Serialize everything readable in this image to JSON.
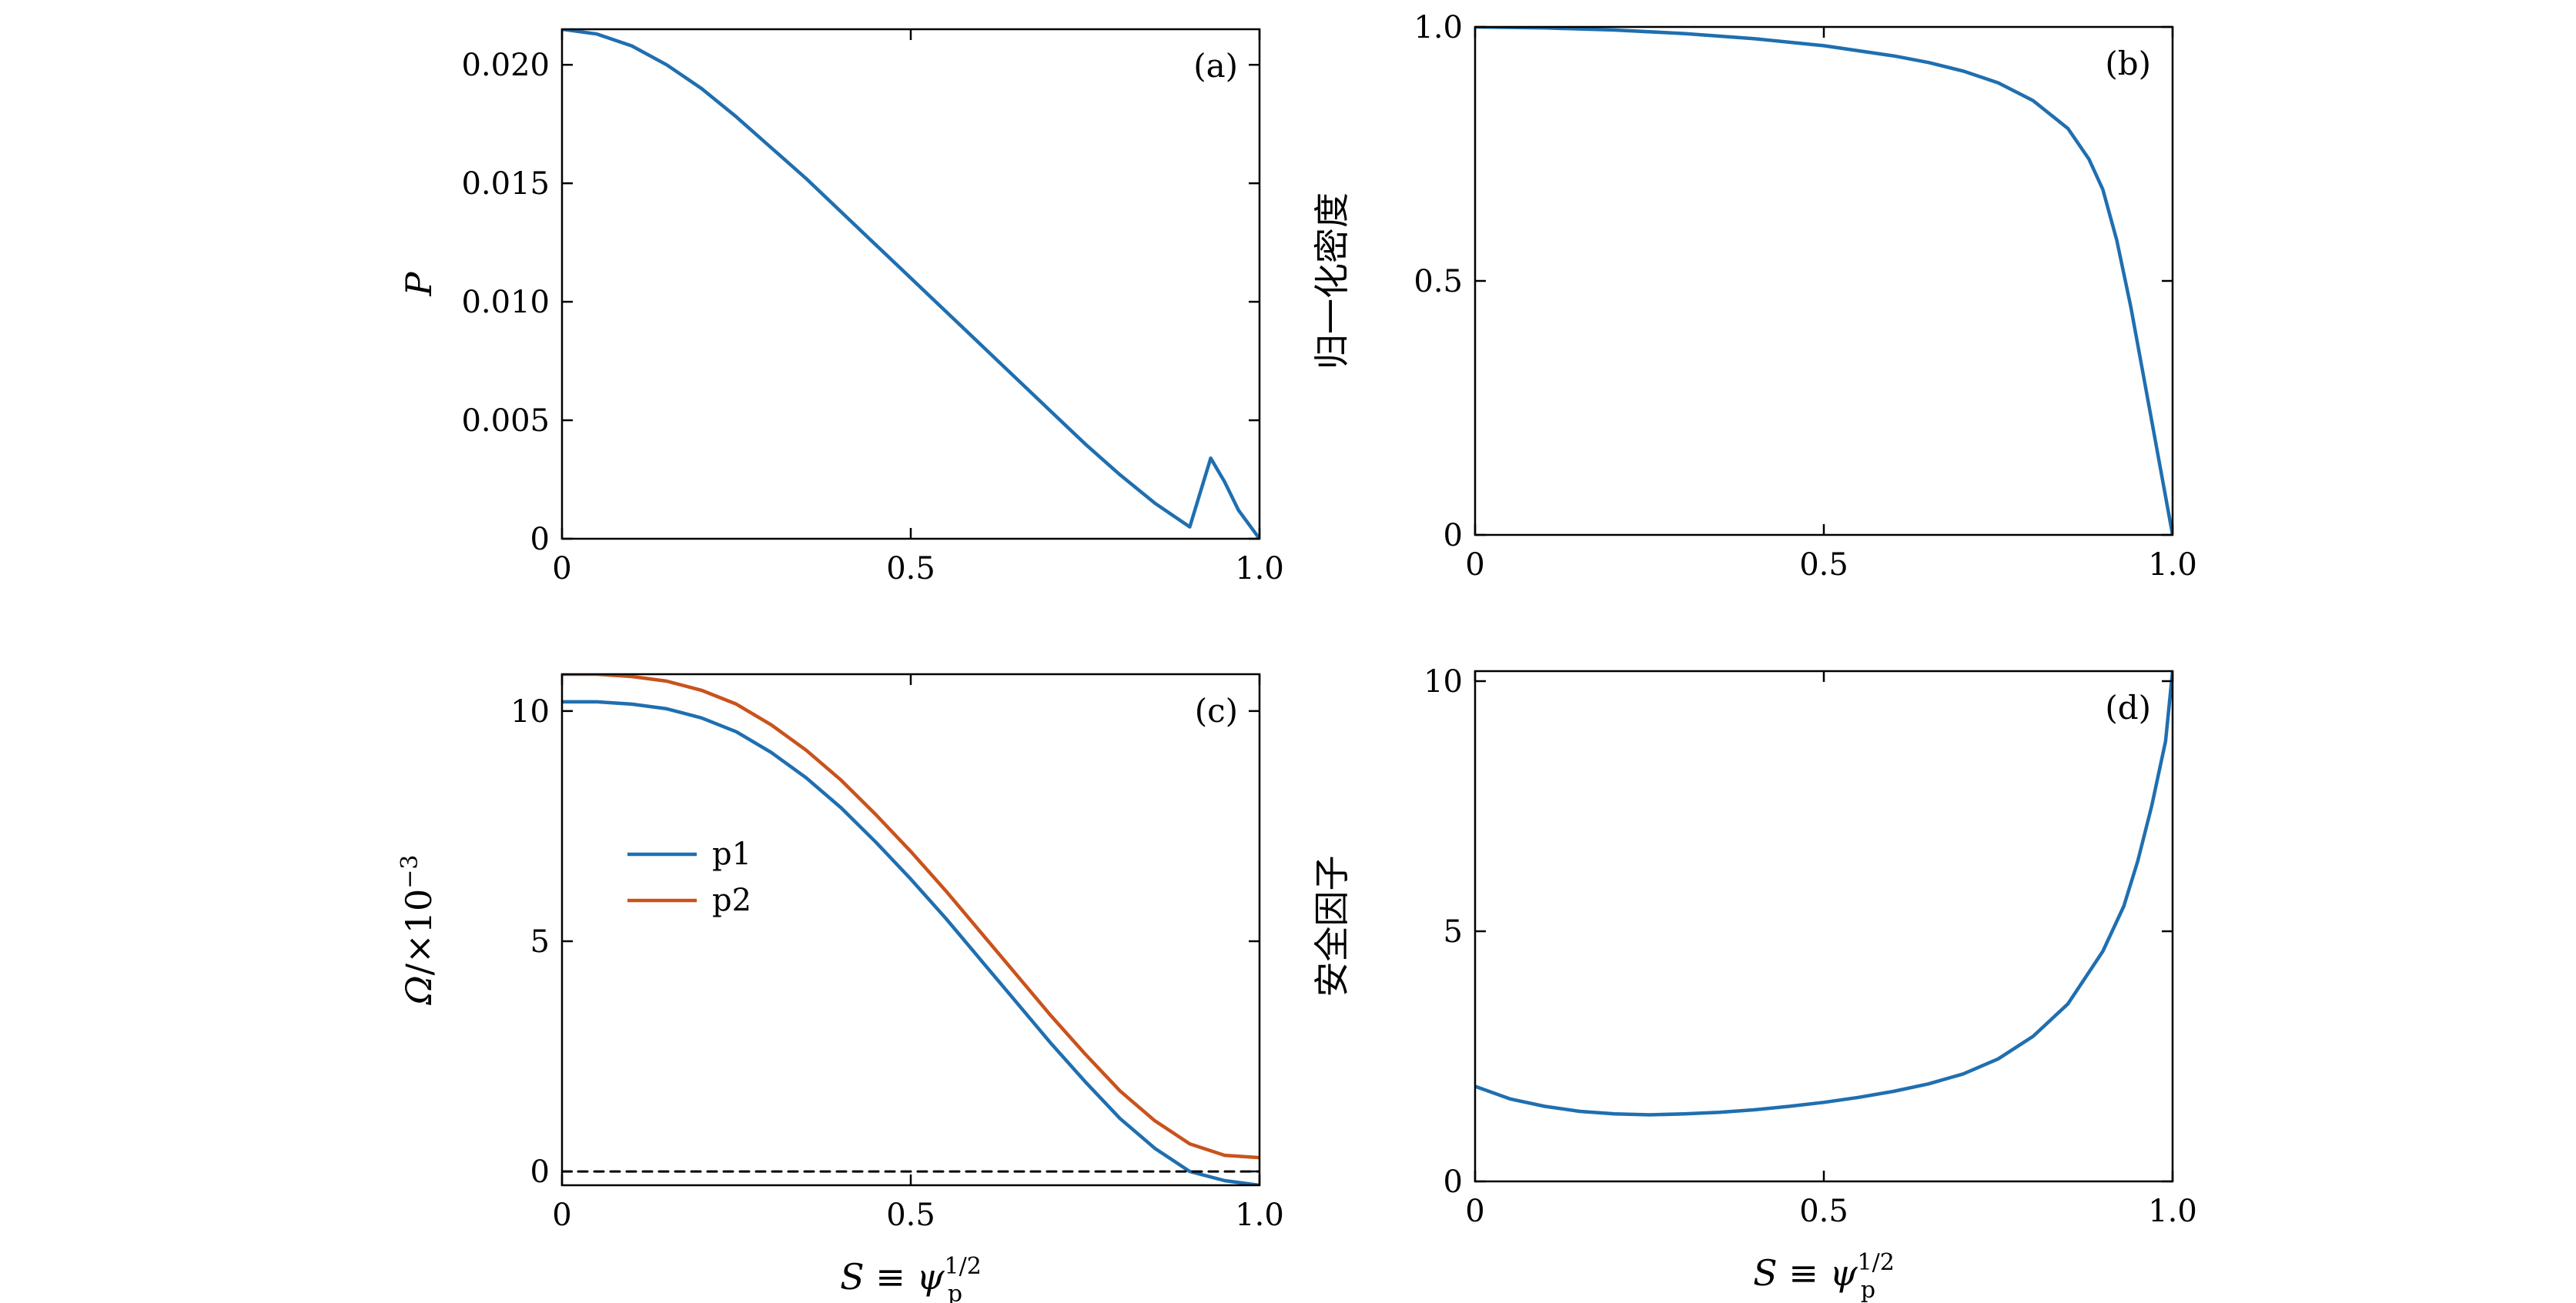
{
  "chart_data": [
    {
      "id": "a",
      "type": "line",
      "panel_label": "(a)",
      "ylabel": "P",
      "xlabel": "",
      "xlim": [
        0,
        1
      ],
      "ylim": [
        0,
        0.0215
      ],
      "xticks": [
        0,
        0.5,
        1.0
      ],
      "xtick_labels": [
        "0",
        "0.5",
        "1.0"
      ],
      "yticks": [
        0,
        0.005,
        0.01,
        0.015,
        0.02
      ],
      "ytick_labels": [
        "0",
        "0.005",
        "0.010",
        "0.015",
        "0.020"
      ],
      "series": [
        {
          "color": "#1f6fb0",
          "dashed": false,
          "x": [
            0,
            0.05,
            0.1,
            0.15,
            0.2,
            0.25,
            0.3,
            0.35,
            0.4,
            0.45,
            0.5,
            0.55,
            0.6,
            0.65,
            0.7,
            0.75,
            0.8,
            0.85,
            0.9,
            0.93,
            0.95,
            0.97,
            1.0
          ],
          "y": [
            0.0215,
            0.0213,
            0.0208,
            0.02,
            0.019,
            0.0178,
            0.0165,
            0.0152,
            0.0138,
            0.0124,
            0.011,
            0.0096,
            0.0082,
            0.0068,
            0.0054,
            0.004,
            0.0027,
            0.0015,
            0.0005,
            0.0034,
            0.0024,
            0.0012,
            0.0
          ]
        }
      ]
    },
    {
      "id": "b",
      "type": "line",
      "panel_label": "(b)",
      "ylabel": "归一化密度",
      "xlabel": "",
      "xlim": [
        0,
        1
      ],
      "ylim": [
        0,
        1
      ],
      "xticks": [
        0,
        0.5,
        1.0
      ],
      "xtick_labels": [
        "0",
        "0.5",
        "1.0"
      ],
      "yticks": [
        0,
        0.5,
        1.0
      ],
      "ytick_labels": [
        "0",
        "0.5",
        "1.0"
      ],
      "series": [
        {
          "color": "#1f6fb0",
          "dashed": false,
          "x": [
            0,
            0.1,
            0.2,
            0.3,
            0.4,
            0.5,
            0.6,
            0.65,
            0.7,
            0.75,
            0.8,
            0.85,
            0.88,
            0.9,
            0.92,
            0.94,
            0.96,
            0.98,
            1.0
          ],
          "y": [
            1.0,
            0.998,
            0.994,
            0.987,
            0.977,
            0.963,
            0.943,
            0.93,
            0.913,
            0.89,
            0.855,
            0.8,
            0.74,
            0.68,
            0.58,
            0.45,
            0.3,
            0.15,
            0.0
          ]
        }
      ]
    },
    {
      "id": "c",
      "type": "line",
      "panel_label": "(c)",
      "ylabel": "Ω/×10⁻³",
      "xlabel": "S ≡ ψp1/2",
      "xlim": [
        0,
        1
      ],
      "ylim": [
        -0.3,
        10.8
      ],
      "xticks": [
        0,
        0.5,
        1.0
      ],
      "xtick_labels": [
        "0",
        "0.5",
        "1.0"
      ],
      "yticks": [
        0,
        5,
        10
      ],
      "ytick_labels": [
        "0",
        "5",
        "10"
      ],
      "legend_position": "center-left",
      "series": [
        {
          "name": "p1",
          "color": "#1f6fb0",
          "dashed": false,
          "x": [
            0,
            0.05,
            0.1,
            0.15,
            0.2,
            0.25,
            0.3,
            0.35,
            0.4,
            0.45,
            0.5,
            0.55,
            0.6,
            0.65,
            0.7,
            0.75,
            0.8,
            0.85,
            0.9,
            0.95,
            1.0
          ],
          "y": [
            10.2,
            10.2,
            10.15,
            10.05,
            9.85,
            9.55,
            9.1,
            8.55,
            7.9,
            7.15,
            6.35,
            5.5,
            4.6,
            3.7,
            2.8,
            1.95,
            1.15,
            0.5,
            0.0,
            -0.2,
            -0.3
          ]
        },
        {
          "name": "p2",
          "color": "#c9531c",
          "dashed": false,
          "x": [
            0,
            0.05,
            0.1,
            0.15,
            0.2,
            0.25,
            0.3,
            0.35,
            0.4,
            0.45,
            0.5,
            0.55,
            0.6,
            0.65,
            0.7,
            0.75,
            0.8,
            0.85,
            0.9,
            0.95,
            1.0
          ],
          "y": [
            10.8,
            10.8,
            10.75,
            10.65,
            10.45,
            10.15,
            9.7,
            9.15,
            8.5,
            7.75,
            6.95,
            6.1,
            5.2,
            4.3,
            3.4,
            2.55,
            1.75,
            1.1,
            0.6,
            0.35,
            0.3
          ]
        },
        {
          "color": "#000000",
          "dashed": true,
          "x": [
            0,
            1.0
          ],
          "y": [
            0,
            0
          ]
        }
      ]
    },
    {
      "id": "d",
      "type": "line",
      "panel_label": "(d)",
      "ylabel": "安全因子",
      "xlabel": "S ≡ ψp1/2",
      "xlim": [
        0,
        1
      ],
      "ylim": [
        0,
        10.2
      ],
      "xticks": [
        0,
        0.5,
        1.0
      ],
      "xtick_labels": [
        "0",
        "0.5",
        "1.0"
      ],
      "yticks": [
        0,
        5,
        10
      ],
      "ytick_labels": [
        "0",
        "5",
        "10"
      ],
      "series": [
        {
          "color": "#1f6fb0",
          "dashed": false,
          "x": [
            0,
            0.05,
            0.1,
            0.15,
            0.2,
            0.25,
            0.3,
            0.35,
            0.4,
            0.45,
            0.5,
            0.55,
            0.6,
            0.65,
            0.7,
            0.75,
            0.8,
            0.85,
            0.9,
            0.93,
            0.95,
            0.97,
            0.99,
            1.0
          ],
          "y": [
            1.9,
            1.65,
            1.5,
            1.4,
            1.35,
            1.33,
            1.35,
            1.38,
            1.43,
            1.5,
            1.58,
            1.68,
            1.8,
            1.95,
            2.15,
            2.45,
            2.9,
            3.55,
            4.6,
            5.5,
            6.4,
            7.5,
            8.8,
            10.2
          ]
        }
      ]
    }
  ]
}
